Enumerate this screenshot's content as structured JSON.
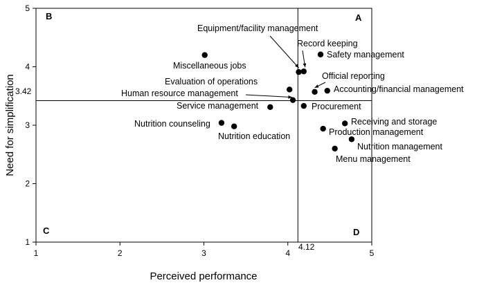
{
  "chart_data": {
    "type": "scatter",
    "xlabel": "Perceived performance",
    "ylabel": "Need for simplification",
    "xlim": [
      1,
      5
    ],
    "ylim": [
      1,
      5
    ],
    "xticks": [
      1,
      2,
      3,
      4,
      5
    ],
    "yticks": [
      1,
      2,
      3,
      4,
      5
    ],
    "reference_lines": {
      "x": 4.12,
      "y": 3.42,
      "x_label": "4.12",
      "y_label": "3.42"
    },
    "quadrants": {
      "top_left": "B",
      "top_right": "A",
      "bottom_left": "C",
      "bottom_right": "D"
    },
    "points": [
      {
        "label": "Miscellaneous jobs",
        "x": 3.01,
        "y": 4.2
      },
      {
        "label": "Equipment/facility management",
        "x": 4.13,
        "y": 3.91
      },
      {
        "label": "Record keeping",
        "x": 4.19,
        "y": 3.92
      },
      {
        "label": "Safety management",
        "x": 4.39,
        "y": 4.21
      },
      {
        "label": "Evaluation of operations",
        "x": 4.02,
        "y": 3.61
      },
      {
        "label": "Official reporting",
        "x": 4.32,
        "y": 3.57
      },
      {
        "label": "Accounting/financial management",
        "x": 4.47,
        "y": 3.59
      },
      {
        "label": "Human resource management",
        "x": 4.06,
        "y": 3.43
      },
      {
        "label": "Service management",
        "x": 3.79,
        "y": 3.31
      },
      {
        "label": "Procurement",
        "x": 4.19,
        "y": 3.33
      },
      {
        "label": "Nutrition counseling",
        "x": 3.21,
        "y": 3.04
      },
      {
        "label": "Nutrition education",
        "x": 3.36,
        "y": 2.98
      },
      {
        "label": "Receiving and storage",
        "x": 4.68,
        "y": 3.03
      },
      {
        "label": "Production management",
        "x": 4.42,
        "y": 2.94
      },
      {
        "label": "Nutrition management",
        "x": 4.76,
        "y": 2.76
      },
      {
        "label": "Menu management",
        "x": 4.56,
        "y": 2.6
      }
    ]
  }
}
